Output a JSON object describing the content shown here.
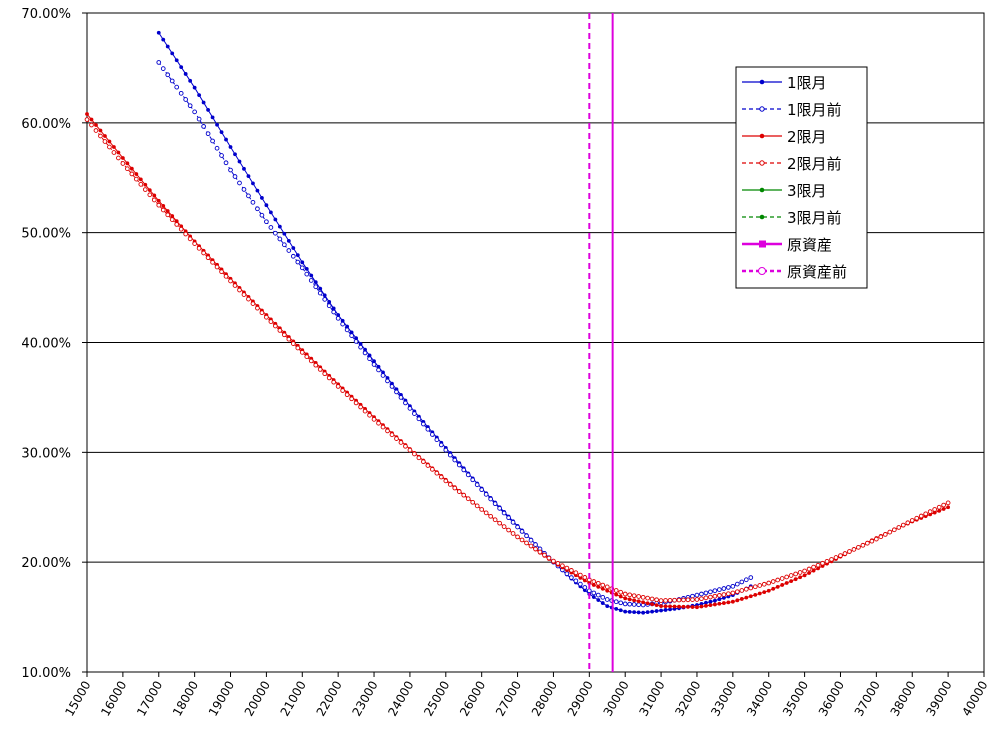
{
  "chart_data": {
    "type": "line",
    "xlim": [
      15000,
      40000
    ],
    "ylim": [
      10,
      70
    ],
    "x_ticks": [
      "15000",
      "16000",
      "17000",
      "18000",
      "19000",
      "20000",
      "21000",
      "22000",
      "23000",
      "24000",
      "25000",
      "26000",
      "27000",
      "28000",
      "29000",
      "30000",
      "31000",
      "32000",
      "33000",
      "34000",
      "35000",
      "36000",
      "37000",
      "38000",
      "39000",
      "40000"
    ],
    "y_ticks": [
      "10.00%",
      "20.00%",
      "30.00%",
      "40.00%",
      "50.00%",
      "60.00%",
      "70.00%"
    ],
    "grid": "horizontal",
    "legend_position": "top-right",
    "series": [
      {
        "name": "1限月",
        "color": "#0000cc",
        "line": "solid",
        "marker": "dot",
        "x": [
          17000,
          18000,
          19000,
          20000,
          21000,
          22000,
          23000,
          24000,
          25000,
          26000,
          27000,
          28000,
          28500,
          29000,
          29500,
          30000,
          30500,
          31000,
          31500,
          32000,
          32500,
          33000,
          33500
        ],
        "y": [
          68.2,
          63.2,
          57.8,
          52.5,
          47.3,
          42.5,
          38.3,
          34.2,
          30.4,
          26.7,
          23.3,
          20.0,
          18.5,
          17.1,
          16.0,
          15.5,
          15.4,
          15.6,
          15.8,
          16.1,
          16.5,
          17.0,
          17.8
        ]
      },
      {
        "name": "1限月前",
        "color": "#0000cc",
        "line": "dashed",
        "marker": "circle",
        "x": [
          17000,
          18000,
          19000,
          20000,
          21000,
          22000,
          23000,
          24000,
          25000,
          26000,
          27000,
          28000,
          28500,
          29000,
          29500,
          30000,
          30500,
          31000,
          31500,
          32000,
          32500,
          33000,
          33500
        ],
        "y": [
          65.5,
          61.0,
          55.7,
          51.0,
          46.8,
          42.2,
          38.0,
          34.0,
          30.2,
          26.6,
          23.2,
          20.0,
          18.6,
          17.4,
          16.6,
          16.2,
          16.1,
          16.3,
          16.6,
          17.0,
          17.4,
          17.8,
          18.6
        ]
      },
      {
        "name": "2限月",
        "color": "#dd0000",
        "line": "solid",
        "marker": "dot",
        "x": [
          15000,
          16000,
          17000,
          18000,
          19000,
          20000,
          21000,
          22000,
          23000,
          24000,
          25000,
          26000,
          27000,
          28000,
          29000,
          30000,
          31000,
          32000,
          33000,
          34000,
          35000,
          36000,
          37000,
          38000,
          39000
        ],
        "y": [
          60.8,
          56.8,
          52.9,
          49.2,
          45.8,
          42.5,
          39.3,
          36.2,
          33.2,
          30.3,
          27.5,
          24.8,
          22.3,
          20.0,
          18.1,
          16.7,
          16.0,
          15.9,
          16.4,
          17.4,
          18.8,
          20.5,
          22.2,
          23.7,
          25.0
        ]
      },
      {
        "name": "2限月前",
        "color": "#dd0000",
        "line": "dashed",
        "marker": "circle",
        "x": [
          15000,
          16000,
          17000,
          18000,
          19000,
          20000,
          21000,
          22000,
          23000,
          24000,
          25000,
          26000,
          27000,
          28000,
          29000,
          30000,
          31000,
          32000,
          33000,
          34000,
          35000,
          36000,
          37000,
          38000,
          39000
        ],
        "y": [
          60.3,
          56.3,
          52.5,
          49.0,
          45.6,
          42.3,
          39.1,
          36.0,
          33.0,
          30.2,
          27.4,
          24.8,
          22.3,
          20.1,
          18.4,
          17.1,
          16.5,
          16.6,
          17.2,
          18.1,
          19.2,
          20.6,
          22.1,
          23.8,
          25.4
        ]
      },
      {
        "name": "3限月",
        "color": "#008800",
        "line": "solid",
        "marker": "dot",
        "x": [],
        "y": []
      },
      {
        "name": "3限月前",
        "color": "#008800",
        "line": "dashed",
        "marker": "dot",
        "x": [],
        "y": []
      },
      {
        "name": "原資産",
        "color": "#dd00dd",
        "line": "solid",
        "marker": "square",
        "vline": 29650
      },
      {
        "name": "原資産前",
        "color": "#dd00dd",
        "line": "dashed",
        "marker": "circle",
        "vline": 29000
      }
    ]
  }
}
